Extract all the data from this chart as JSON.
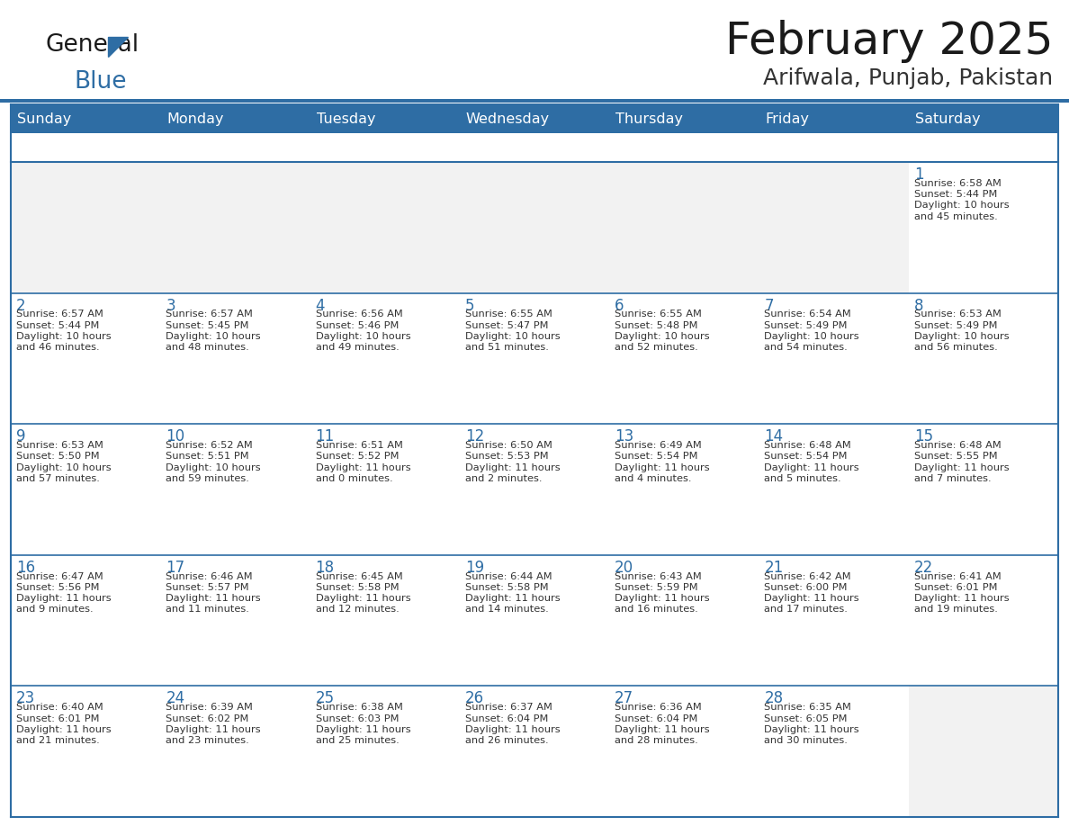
{
  "title": "February 2025",
  "subtitle": "Arifwala, Punjab, Pakistan",
  "header_bg": "#2E6DA4",
  "header_text_color": "#FFFFFF",
  "cell_bg": "#F2F2F2",
  "cell_bg_white": "#FFFFFF",
  "border_color": "#2E6DA4",
  "text_color": "#333333",
  "day_number_color": "#2E6DA4",
  "day_names": [
    "Sunday",
    "Monday",
    "Tuesday",
    "Wednesday",
    "Thursday",
    "Friday",
    "Saturday"
  ],
  "title_color": "#1a1a1a",
  "subtitle_color": "#333333",
  "logo_general_color": "#1a1a1a",
  "logo_blue_color": "#2E6DA4",
  "days": [
    {
      "day": 1,
      "col": 6,
      "row": 0,
      "sunrise": "6:58 AM",
      "sunset": "5:44 PM",
      "daylight_hrs": 10,
      "daylight_min": 45
    },
    {
      "day": 2,
      "col": 0,
      "row": 1,
      "sunrise": "6:57 AM",
      "sunset": "5:44 PM",
      "daylight_hrs": 10,
      "daylight_min": 46
    },
    {
      "day": 3,
      "col": 1,
      "row": 1,
      "sunrise": "6:57 AM",
      "sunset": "5:45 PM",
      "daylight_hrs": 10,
      "daylight_min": 48
    },
    {
      "day": 4,
      "col": 2,
      "row": 1,
      "sunrise": "6:56 AM",
      "sunset": "5:46 PM",
      "daylight_hrs": 10,
      "daylight_min": 49
    },
    {
      "day": 5,
      "col": 3,
      "row": 1,
      "sunrise": "6:55 AM",
      "sunset": "5:47 PM",
      "daylight_hrs": 10,
      "daylight_min": 51
    },
    {
      "day": 6,
      "col": 4,
      "row": 1,
      "sunrise": "6:55 AM",
      "sunset": "5:48 PM",
      "daylight_hrs": 10,
      "daylight_min": 52
    },
    {
      "day": 7,
      "col": 5,
      "row": 1,
      "sunrise": "6:54 AM",
      "sunset": "5:49 PM",
      "daylight_hrs": 10,
      "daylight_min": 54
    },
    {
      "day": 8,
      "col": 6,
      "row": 1,
      "sunrise": "6:53 AM",
      "sunset": "5:49 PM",
      "daylight_hrs": 10,
      "daylight_min": 56
    },
    {
      "day": 9,
      "col": 0,
      "row": 2,
      "sunrise": "6:53 AM",
      "sunset": "5:50 PM",
      "daylight_hrs": 10,
      "daylight_min": 57
    },
    {
      "day": 10,
      "col": 1,
      "row": 2,
      "sunrise": "6:52 AM",
      "sunset": "5:51 PM",
      "daylight_hrs": 10,
      "daylight_min": 59
    },
    {
      "day": 11,
      "col": 2,
      "row": 2,
      "sunrise": "6:51 AM",
      "sunset": "5:52 PM",
      "daylight_hrs": 11,
      "daylight_min": 0
    },
    {
      "day": 12,
      "col": 3,
      "row": 2,
      "sunrise": "6:50 AM",
      "sunset": "5:53 PM",
      "daylight_hrs": 11,
      "daylight_min": 2
    },
    {
      "day": 13,
      "col": 4,
      "row": 2,
      "sunrise": "6:49 AM",
      "sunset": "5:54 PM",
      "daylight_hrs": 11,
      "daylight_min": 4
    },
    {
      "day": 14,
      "col": 5,
      "row": 2,
      "sunrise": "6:48 AM",
      "sunset": "5:54 PM",
      "daylight_hrs": 11,
      "daylight_min": 5
    },
    {
      "day": 15,
      "col": 6,
      "row": 2,
      "sunrise": "6:48 AM",
      "sunset": "5:55 PM",
      "daylight_hrs": 11,
      "daylight_min": 7
    },
    {
      "day": 16,
      "col": 0,
      "row": 3,
      "sunrise": "6:47 AM",
      "sunset": "5:56 PM",
      "daylight_hrs": 11,
      "daylight_min": 9
    },
    {
      "day": 17,
      "col": 1,
      "row": 3,
      "sunrise": "6:46 AM",
      "sunset": "5:57 PM",
      "daylight_hrs": 11,
      "daylight_min": 11
    },
    {
      "day": 18,
      "col": 2,
      "row": 3,
      "sunrise": "6:45 AM",
      "sunset": "5:58 PM",
      "daylight_hrs": 11,
      "daylight_min": 12
    },
    {
      "day": 19,
      "col": 3,
      "row": 3,
      "sunrise": "6:44 AM",
      "sunset": "5:58 PM",
      "daylight_hrs": 11,
      "daylight_min": 14
    },
    {
      "day": 20,
      "col": 4,
      "row": 3,
      "sunrise": "6:43 AM",
      "sunset": "5:59 PM",
      "daylight_hrs": 11,
      "daylight_min": 16
    },
    {
      "day": 21,
      "col": 5,
      "row": 3,
      "sunrise": "6:42 AM",
      "sunset": "6:00 PM",
      "daylight_hrs": 11,
      "daylight_min": 17
    },
    {
      "day": 22,
      "col": 6,
      "row": 3,
      "sunrise": "6:41 AM",
      "sunset": "6:01 PM",
      "daylight_hrs": 11,
      "daylight_min": 19
    },
    {
      "day": 23,
      "col": 0,
      "row": 4,
      "sunrise": "6:40 AM",
      "sunset": "6:01 PM",
      "daylight_hrs": 11,
      "daylight_min": 21
    },
    {
      "day": 24,
      "col": 1,
      "row": 4,
      "sunrise": "6:39 AM",
      "sunset": "6:02 PM",
      "daylight_hrs": 11,
      "daylight_min": 23
    },
    {
      "day": 25,
      "col": 2,
      "row": 4,
      "sunrise": "6:38 AM",
      "sunset": "6:03 PM",
      "daylight_hrs": 11,
      "daylight_min": 25
    },
    {
      "day": 26,
      "col": 3,
      "row": 4,
      "sunrise": "6:37 AM",
      "sunset": "6:04 PM",
      "daylight_hrs": 11,
      "daylight_min": 26
    },
    {
      "day": 27,
      "col": 4,
      "row": 4,
      "sunrise": "6:36 AM",
      "sunset": "6:04 PM",
      "daylight_hrs": 11,
      "daylight_min": 28
    },
    {
      "day": 28,
      "col": 5,
      "row": 4,
      "sunrise": "6:35 AM",
      "sunset": "6:05 PM",
      "daylight_hrs": 11,
      "daylight_min": 30
    }
  ]
}
